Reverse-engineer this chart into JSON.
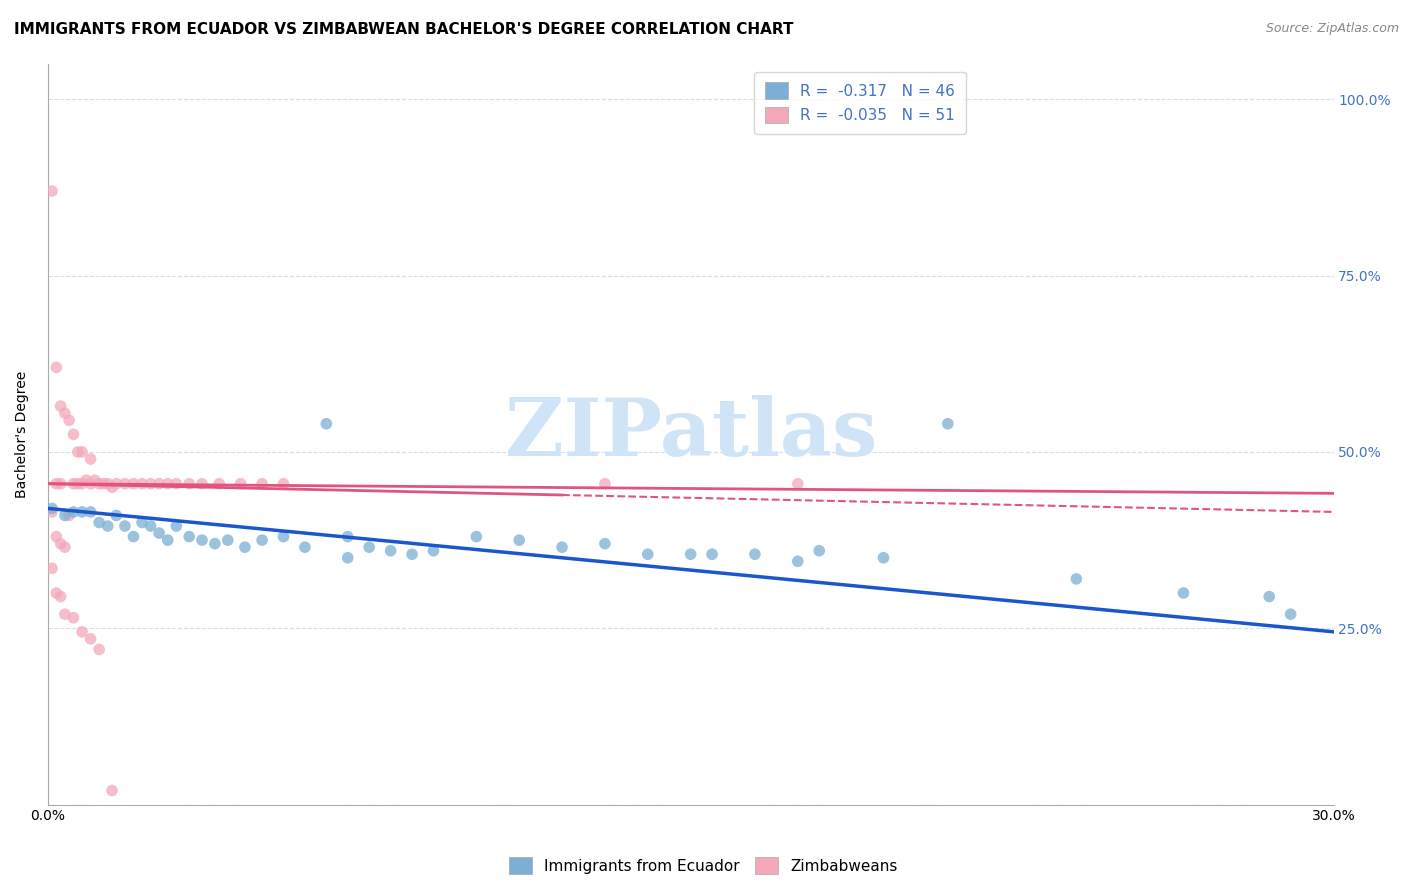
{
  "title": "IMMIGRANTS FROM ECUADOR VS ZIMBABWEAN BACHELOR'S DEGREE CORRELATION CHART",
  "source": "Source: ZipAtlas.com",
  "ylabel": "Bachelor's Degree",
  "xlim": [
    0.0,
    0.3
  ],
  "ylim": [
    0.0,
    1.05
  ],
  "yticks": [
    0.0,
    0.25,
    0.5,
    0.75,
    1.0
  ],
  "right_ytick_color": "#4472c4",
  "blue_color": "#7bafd4",
  "pink_color": "#f4a7b9",
  "trendline_blue": "#1a56cc",
  "trendline_pink": "#e05580",
  "watermark_color": "#d0e4f7",
  "grid_color": "#d8dce8",
  "title_fontsize": 11,
  "axis_label_fontsize": 10,
  "tick_fontsize": 10,
  "marker_size": 70,
  "blue_points_x": [
    0.001,
    0.004,
    0.006,
    0.008,
    0.01,
    0.012,
    0.014,
    0.016,
    0.018,
    0.02,
    0.022,
    0.024,
    0.026,
    0.028,
    0.03,
    0.033,
    0.036,
    0.039,
    0.042,
    0.046,
    0.05,
    0.055,
    0.06,
    0.065,
    0.07,
    0.075,
    0.08,
    0.085,
    0.09,
    0.1,
    0.11,
    0.12,
    0.13,
    0.14,
    0.155,
    0.165,
    0.18,
    0.195,
    0.21,
    0.24,
    0.265,
    0.285,
    0.15,
    0.175,
    0.29,
    0.07
  ],
  "blue_points_y": [
    0.42,
    0.41,
    0.415,
    0.415,
    0.415,
    0.4,
    0.395,
    0.41,
    0.395,
    0.38,
    0.4,
    0.395,
    0.385,
    0.375,
    0.395,
    0.38,
    0.375,
    0.37,
    0.375,
    0.365,
    0.375,
    0.38,
    0.365,
    0.54,
    0.38,
    0.365,
    0.36,
    0.355,
    0.36,
    0.38,
    0.375,
    0.365,
    0.37,
    0.355,
    0.355,
    0.355,
    0.36,
    0.35,
    0.54,
    0.32,
    0.3,
    0.295,
    0.355,
    0.345,
    0.27,
    0.35
  ],
  "pink_points_x": [
    0.001,
    0.001,
    0.002,
    0.002,
    0.003,
    0.003,
    0.004,
    0.004,
    0.005,
    0.005,
    0.006,
    0.006,
    0.007,
    0.007,
    0.008,
    0.008,
    0.009,
    0.01,
    0.01,
    0.011,
    0.012,
    0.013,
    0.014,
    0.015,
    0.016,
    0.018,
    0.02,
    0.022,
    0.024,
    0.026,
    0.028,
    0.03,
    0.033,
    0.036,
    0.04,
    0.045,
    0.05,
    0.055,
    0.002,
    0.003,
    0.13,
    0.175,
    0.001,
    0.002,
    0.003,
    0.004,
    0.006,
    0.008,
    0.01,
    0.012,
    0.015
  ],
  "pink_points_y": [
    0.87,
    0.415,
    0.62,
    0.38,
    0.565,
    0.37,
    0.555,
    0.365,
    0.545,
    0.41,
    0.525,
    0.455,
    0.5,
    0.455,
    0.5,
    0.455,
    0.46,
    0.49,
    0.455,
    0.46,
    0.455,
    0.455,
    0.455,
    0.45,
    0.455,
    0.455,
    0.455,
    0.455,
    0.455,
    0.455,
    0.455,
    0.455,
    0.455,
    0.455,
    0.455,
    0.455,
    0.455,
    0.455,
    0.455,
    0.455,
    0.455,
    0.455,
    0.335,
    0.3,
    0.295,
    0.27,
    0.265,
    0.245,
    0.235,
    0.22,
    0.02
  ],
  "blue_trend_x": [
    0.0,
    0.3
  ],
  "blue_trend_y": [
    0.42,
    0.245
  ],
  "pink_trend_x": [
    0.0,
    0.3
  ],
  "pink_trend_y": [
    0.455,
    0.415
  ]
}
